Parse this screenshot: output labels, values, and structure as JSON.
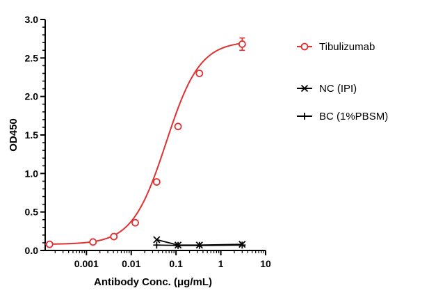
{
  "chart_data": {
    "type": "scatter",
    "xlabel": "Antibody Conc. (μg/mL)",
    "ylabel": "OD450",
    "x_scale": "log",
    "xlim": [
      0.00012,
      10
    ],
    "ylim": [
      0,
      3.0
    ],
    "x_tick_labels": [
      "0.001",
      "0.01",
      "0.1",
      "1",
      "10"
    ],
    "y_tick_labels": [
      "0.0",
      "0.5",
      "1.0",
      "1.5",
      "2.0",
      "2.5",
      "3.0"
    ],
    "legend_position": "right",
    "grid": false,
    "series": [
      {
        "name": "Tibulizumab",
        "color": "#e03030",
        "marker": "circle",
        "fit": "sigmoidal curve",
        "x": [
          0.00015,
          0.0014,
          0.0041,
          0.0123,
          0.037,
          0.111,
          0.333,
          3.0
        ],
        "y": [
          0.08,
          0.11,
          0.18,
          0.36,
          0.89,
          1.61,
          2.3,
          2.68
        ],
        "error": [
          0,
          0,
          0,
          0,
          0,
          0,
          0,
          0.08
        ]
      },
      {
        "name": "NC (IPI)",
        "color": "#000000",
        "marker": "x",
        "x": [
          0.037,
          0.111,
          0.333,
          3.0
        ],
        "y": [
          0.14,
          0.07,
          0.07,
          0.08
        ]
      },
      {
        "name": "BC (1%PBSM)",
        "color": "#000000",
        "marker": "plus",
        "x": [
          0.037,
          0.111,
          0.333,
          3.0
        ],
        "y": [
          0.07,
          0.065,
          0.065,
          0.07
        ]
      }
    ]
  }
}
